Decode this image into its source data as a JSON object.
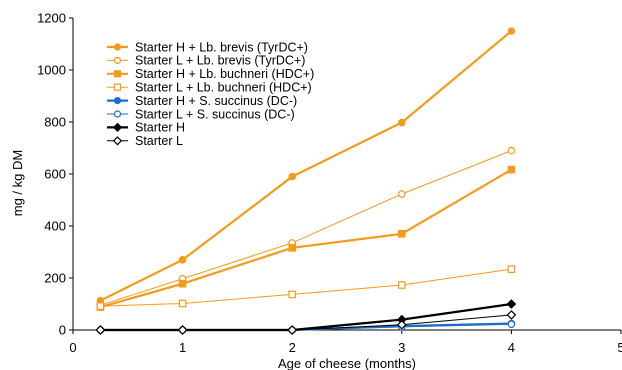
{
  "chart_data": {
    "type": "line",
    "title": "",
    "xlabel": "Age of cheese (months)",
    "ylabel": "mg / kg DM",
    "xlim": [
      0,
      5
    ],
    "ylim": [
      0,
      1200
    ],
    "x_ticks": [
      0,
      1,
      2,
      3,
      4,
      5
    ],
    "y_ticks": [
      0,
      200,
      400,
      600,
      800,
      1000,
      1200
    ],
    "grid": false,
    "legend_position": "top-left",
    "series": [
      {
        "name": "Starter H  + Lb. brevis (TyrDC+)",
        "color": "#F59A1B",
        "marker": "circle",
        "filled": true,
        "line_width": 2.2,
        "points": [
          [
            0.25,
            113
          ],
          [
            1,
            270
          ],
          [
            2,
            590
          ],
          [
            3,
            798
          ],
          [
            4,
            1150
          ]
        ]
      },
      {
        "name": "Starter L  + Lb. brevis (TyrDC+)",
        "color": "#F59A1B",
        "marker": "circle",
        "filled": false,
        "line_width": 1,
        "points": [
          [
            0.25,
            95
          ],
          [
            1,
            197
          ],
          [
            2,
            335
          ],
          [
            3,
            523
          ],
          [
            4,
            690
          ]
        ]
      },
      {
        "name": "Starter H  + Lb. buchneri (HDC+)",
        "color": "#F59A1B",
        "marker": "square",
        "filled": true,
        "line_width": 2.2,
        "points": [
          [
            0.25,
            88
          ],
          [
            1,
            178
          ],
          [
            2,
            316
          ],
          [
            3,
            370
          ],
          [
            4,
            617
          ]
        ]
      },
      {
        "name": "Starter L  + Lb. buchneri (HDC+)",
        "color": "#F59A1B",
        "marker": "square",
        "filled": false,
        "line_width": 1,
        "points": [
          [
            0.25,
            92
          ],
          [
            1,
            102
          ],
          [
            2,
            137
          ],
          [
            3,
            173
          ],
          [
            4,
            234
          ]
        ]
      },
      {
        "name": "Starter H  + S. succinus (DC-)",
        "color": "#1A6FC4",
        "marker": "circle",
        "filled": true,
        "line_width": 2.2,
        "points": [
          [
            0.25,
            0
          ],
          [
            1,
            0
          ],
          [
            2,
            0
          ],
          [
            3,
            15
          ],
          [
            4,
            25
          ]
        ]
      },
      {
        "name": "Starter L  + S. succinus (DC-)",
        "color": "#1A6FC4",
        "marker": "circle",
        "filled": false,
        "line_width": 1,
        "points": [
          [
            0.25,
            0
          ],
          [
            1,
            0
          ],
          [
            2,
            0
          ],
          [
            3,
            12
          ],
          [
            4,
            22
          ]
        ]
      },
      {
        "name": "Starter H",
        "color": "#000000",
        "marker": "diamond",
        "filled": true,
        "line_width": 2.2,
        "points": [
          [
            0.25,
            0
          ],
          [
            1,
            0
          ],
          [
            2,
            0
          ],
          [
            3,
            40
          ],
          [
            4,
            100
          ]
        ]
      },
      {
        "name": "Starter L",
        "color": "#000000",
        "marker": "diamond",
        "filled": false,
        "line_width": 1,
        "points": [
          [
            0.25,
            0
          ],
          [
            1,
            0
          ],
          [
            2,
            0
          ],
          [
            3,
            20
          ],
          [
            4,
            58
          ]
        ]
      }
    ]
  }
}
